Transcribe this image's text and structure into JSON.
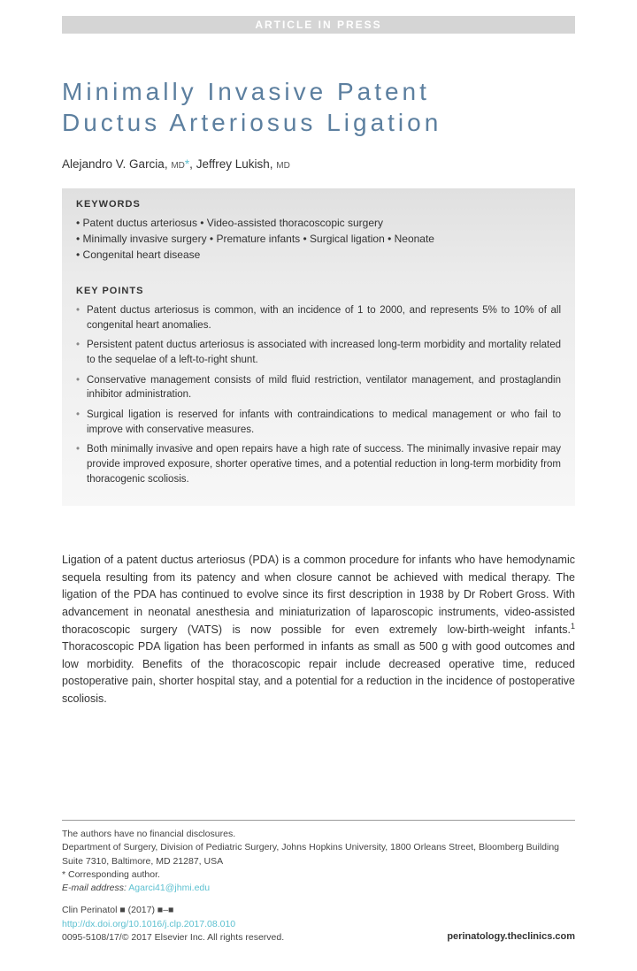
{
  "banner": "ARTICLE IN PRESS",
  "title_line1": "Minimally Invasive Patent",
  "title_line2": "Ductus Arteriosus Ligation",
  "authors": {
    "a1_name": "Alejandro V. Garcia,",
    "a1_cred": "MD",
    "a1_ast": "*",
    "sep": ", ",
    "a2_name": "Jeffrey Lukish,",
    "a2_cred": "MD"
  },
  "keywords": {
    "heading": "KEYWORDS",
    "line1": "• Patent ductus arteriosus • Video-assisted thoracoscopic surgery",
    "line2": "• Minimally invasive surgery • Premature infants • Surgical ligation • Neonate",
    "line3": "• Congenital heart disease"
  },
  "keypoints": {
    "heading": "KEY POINTS",
    "items": [
      "Patent ductus arteriosus is common, with an incidence of 1 to 2000, and represents 5% to 10% of all congenital heart anomalies.",
      "Persistent patent ductus arteriosus is associated with increased long-term morbidity and mortality related to the sequelae of a left-to-right shunt.",
      "Conservative management consists of mild fluid restriction, ventilator management, and prostaglandin inhibitor administration.",
      "Surgical ligation is reserved for infants with contraindications to medical management or who fail to improve with conservative measures.",
      "Both minimally invasive and open repairs have a high rate of success. The minimally invasive repair may provide improved exposure, shorter operative times, and a potential reduction in long-term morbidity from thoracogenic scoliosis."
    ]
  },
  "body": {
    "p1a": "Ligation of a patent ductus arteriosus (PDA) is a common procedure for infants who have hemodynamic sequela resulting from its patency and when closure cannot be achieved with medical therapy. The ligation of the PDA has continued to evolve since its first description in 1938 by Dr Robert Gross. With advancement in neonatal anesthesia and miniaturization of laparoscopic instruments, video-assisted thoracoscopic surgery (VATS) is now possible for even extremely low-birth-weight infants.",
    "ref1": "1",
    "p1b": " Thoracoscopic PDA ligation has been performed in infants as small as 500 g with good outcomes and low morbidity. Benefits of the thoracoscopic repair include decreased operative time, reduced postoperative pain, shorter hospital stay, and a potential for a reduction in the incidence of postoperative scoliosis."
  },
  "footer": {
    "disclosure": "The authors have no financial disclosures.",
    "affiliation": "Department of Surgery, Division of Pediatric Surgery, Johns Hopkins University, 1800 Orleans Street, Bloomberg Building Suite 7310, Baltimore, MD 21287, USA",
    "corresponding": "* Corresponding author.",
    "email_label": "E-mail address:",
    "email": "Agarci41@jhmi.edu",
    "journal": "Clin Perinatol ■ (2017) ■–■",
    "doi": "http://dx.doi.org/10.1016/j.clp.2017.08.010",
    "issn": "0095-5108/17/© 2017 Elsevier Inc. All rights reserved.",
    "website": "perinatology.theclinics.com"
  },
  "colors": {
    "title_color": "#5c7f9f",
    "link_color": "#5cc0d0",
    "banner_bg": "#d5d5d5",
    "box_bg_light": "#f7f7f7",
    "box_bg_dark": "#e0e0e0"
  }
}
